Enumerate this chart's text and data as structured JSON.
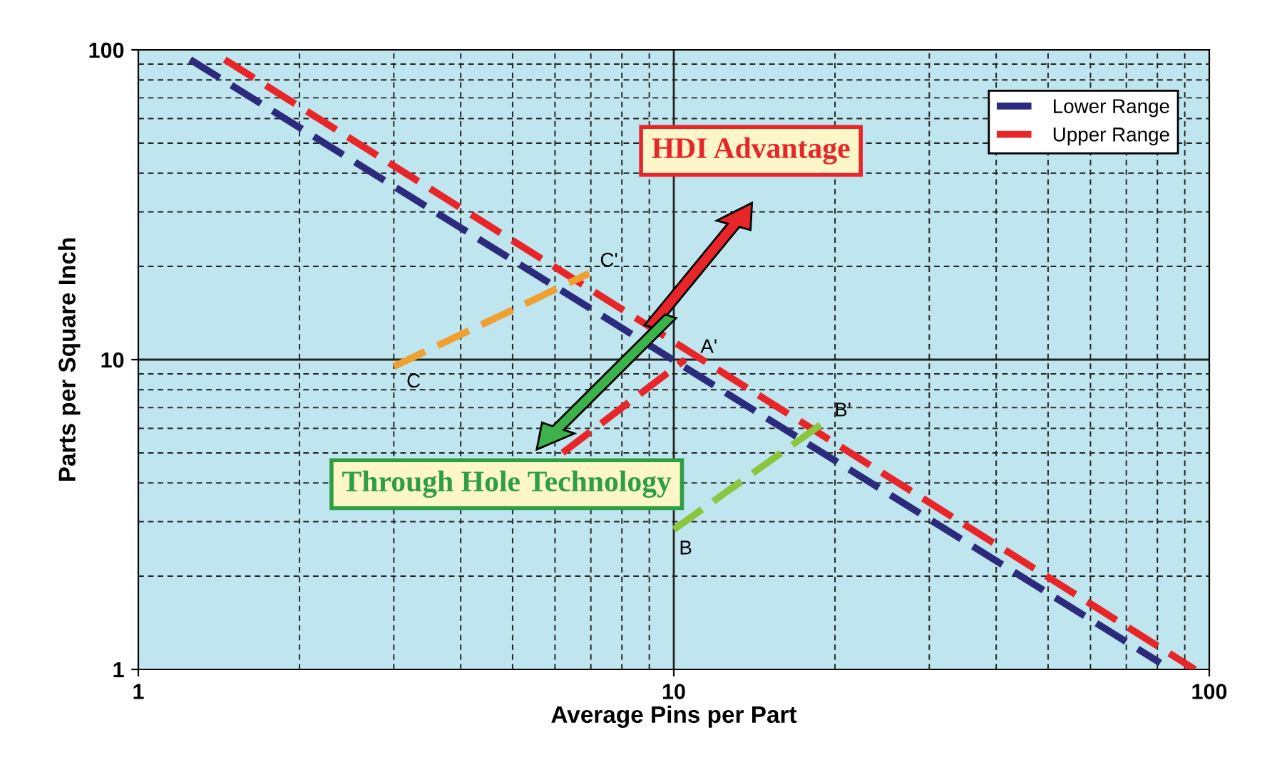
{
  "chart_data": {
    "type": "line",
    "xlabel": "Average Pins per Part",
    "ylabel": "Parts per Square Inch",
    "log": "xy",
    "xlim": [
      1,
      100
    ],
    "ylim": [
      1,
      100
    ],
    "xticks": [
      1,
      10,
      100
    ],
    "yticks": [
      1,
      10,
      100
    ],
    "grid": true,
    "legend": "top right",
    "line_style": "dashed",
    "marker": "none",
    "series": [
      {
        "name": "Lower Range",
        "color": "#2b2a7c",
        "x": [
          1.25,
          81
        ],
        "values": [
          93,
          1.05
        ]
      },
      {
        "name": "Upper Range",
        "color": "#e8262a",
        "x": [
          1.45,
          94
        ],
        "values": [
          93,
          1.0
        ]
      },
      {
        "color": "#f0a030",
        "x": [
          3.0,
          6.95
        ],
        "values": [
          9.5,
          19
        ]
      },
      {
        "color": "#e8262a",
        "x": [
          6.2,
          10.5
        ],
        "values": [
          5.0,
          10
        ]
      },
      {
        "color": "#8cc63f",
        "x": [
          10.0,
          19
        ],
        "values": [
          2.83,
          6.24
        ]
      }
    ],
    "annotations": [
      {
        "text": "C'",
        "x": 6.95,
        "y": 19
      },
      {
        "text": "A'",
        "x": 10.5,
        "y": 10
      },
      {
        "text": "B'",
        "x": 19,
        "y": 6.24
      },
      {
        "text": "C",
        "x": 3.0,
        "y": 9.5
      },
      {
        "text": "B",
        "x": 10.0,
        "y": 2.83
      },
      "HDI Advantage",
      "Through Hole Technology"
    ]
  }
}
